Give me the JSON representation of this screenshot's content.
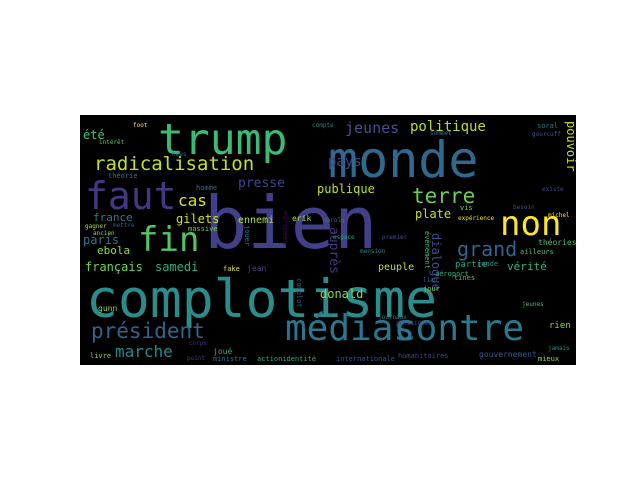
{
  "wordcloud": {
    "words": [
      {
        "text": "complotisme",
        "color": "#2a8d8c"
      },
      {
        "text": "bien",
        "color": "#424089"
      },
      {
        "text": "monde",
        "color": "#31688e"
      },
      {
        "text": "trump",
        "color": "#3bbb75"
      },
      {
        "text": "médias",
        "color": "#2b758e"
      },
      {
        "text": "contre",
        "color": "#2a788e"
      },
      {
        "text": "faut",
        "color": "#453882"
      },
      {
        "text": "non",
        "color": "#fde725"
      },
      {
        "text": "fin",
        "color": "#52c569"
      },
      {
        "text": "radicalisation",
        "color": "#c6e020"
      },
      {
        "text": "président",
        "color": "#33638d"
      },
      {
        "text": "terre",
        "color": "#6ccd5a"
      },
      {
        "text": "grand",
        "color": "#32648e"
      },
      {
        "text": "marche",
        "color": "#238a8d"
      },
      {
        "text": "jeunes",
        "color": "#39568c"
      },
      {
        "text": "politique",
        "color": "#b8de29"
      },
      {
        "text": "cas",
        "color": "#d8e219"
      },
      {
        "text": "pays",
        "color": "#404688"
      },
      {
        "text": "presse",
        "color": "#404388"
      },
      {
        "text": "été",
        "color": "#4ac16d"
      },
      {
        "text": "gilets",
        "color": "#d0e11c"
      },
      {
        "text": "publique",
        "color": "#c2df23"
      },
      {
        "text": "plate",
        "color": "#c8e020"
      },
      {
        "text": "samedi",
        "color": "#29af7f"
      },
      {
        "text": "donald",
        "color": "#8bd646"
      },
      {
        "text": "vérité",
        "color": "#35b779"
      },
      {
        "text": "français",
        "color": "#77d153"
      },
      {
        "text": "paris",
        "color": "#2c738e"
      },
      {
        "text": "ebola",
        "color": "#95d840"
      },
      {
        "text": "france",
        "color": "#287d8e"
      },
      {
        "text": "ennemi",
        "color": "#b4de2c"
      },
      {
        "text": "pouvoir",
        "color": "#bddf26"
      },
      {
        "text": "dialogue",
        "color": "#3e4c8a"
      },
      {
        "text": "auprès",
        "color": "#453781"
      },
      {
        "text": "peuple",
        "color": "#bade28"
      },
      {
        "text": "partie",
        "color": "#20a386"
      },
      {
        "text": "théories",
        "color": "#46c06f"
      },
      {
        "text": "jeunes",
        "color": "#44bf70"
      },
      {
        "text": "rien",
        "color": "#85d54a"
      },
      {
        "text": "gouvernement",
        "color": "#38598c"
      },
      {
        "text": "joué",
        "color": "#25ac82"
      },
      {
        "text": "gunn",
        "color": "#8bd646"
      },
      {
        "text": "livre",
        "color": "#9dd93b"
      },
      {
        "text": "ministre",
        "color": "#2e6e8e"
      },
      {
        "text": "actionidentité",
        "color": "#25ab82"
      },
      {
        "text": "internationale",
        "color": "#3b528b"
      },
      {
        "text": "humanitaires",
        "color": "#3e4a89"
      },
      {
        "text": "mieux",
        "color": "#9bd93c"
      },
      {
        "text": "jamais",
        "color": "#21908d"
      },
      {
        "text": "théorie",
        "color": "#2a778e"
      },
      {
        "text": "homme",
        "color": "#2d708e"
      },
      {
        "text": "massive",
        "color": "#6ece58"
      },
      {
        "text": "gagner",
        "color": "#b0dd2f"
      },
      {
        "text": "mettre",
        "color": "#3a548c"
      },
      {
        "text": "jean",
        "color": "#3f4889"
      },
      {
        "text": "fake",
        "color": "#dfe318"
      },
      {
        "text": "corps",
        "color": "#472e7c"
      },
      {
        "text": "européen",
        "color": "#440154"
      },
      {
        "text": "jouer",
        "color": "#2c718e"
      },
      {
        "text": "erik",
        "color": "#aadc32"
      },
      {
        "text": "parole",
        "color": "#287c8e"
      },
      {
        "text": "espace",
        "color": "#1f9e89"
      },
      {
        "text": "mension",
        "color": "#24868e"
      },
      {
        "text": "événement",
        "color": "#3dbc74"
      },
      {
        "text": "aéroport",
        "color": "#2db27d"
      },
      {
        "text": "ronde",
        "color": "#20928c"
      },
      {
        "text": "jour",
        "color": "#74d055"
      },
      {
        "text": "lieu",
        "color": "#34608d"
      },
      {
        "text": "vis",
        "color": "#7fd34e"
      },
      {
        "text": "expérience",
        "color": "#efe51c"
      },
      {
        "text": "besoin",
        "color": "#3a548c"
      },
      {
        "text": "ailleurs",
        "color": "#4ac16d"
      },
      {
        "text": "existe",
        "color": "#3d4e8a"
      },
      {
        "text": "soral",
        "color": "#29798e"
      },
      {
        "text": "gourcuff",
        "color": "#375a8c"
      },
      {
        "text": "foot",
        "color": "#fde725"
      },
      {
        "text": "compte",
        "color": "#27808e"
      },
      {
        "text": "intérêt",
        "color": "#56c667"
      },
      {
        "text": "ancien",
        "color": "#a0da39"
      },
      {
        "text": "news",
        "color": "#2e6d8e"
      },
      {
        "text": "tines",
        "color": "#4ac16d"
      },
      {
        "text": "sommet",
        "color": "#2e6f8e"
      },
      {
        "text": "journaux",
        "color": "#25848e"
      },
      {
        "text": "complot",
        "color": "#3a548c"
      },
      {
        "text": "michel",
        "color": "#fde725"
      },
      {
        "text": "politiques",
        "color": "#3e4c8a"
      },
      {
        "text": "point",
        "color": "#443a83"
      },
      {
        "text": "premier",
        "color": "#3b528b"
      }
    ]
  }
}
